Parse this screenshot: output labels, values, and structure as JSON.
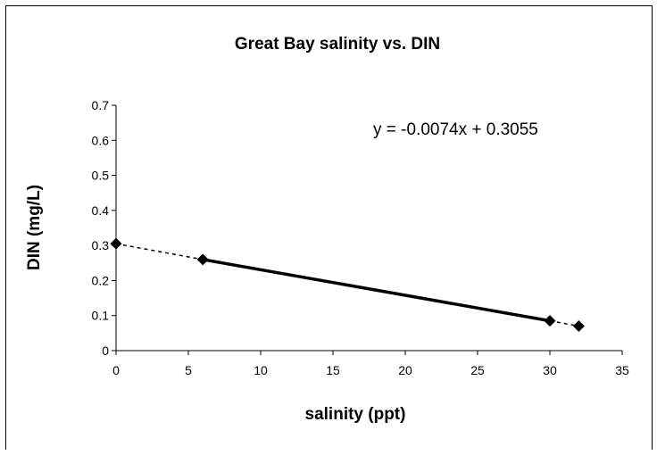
{
  "chart_data": {
    "type": "scatter",
    "title": "Great Bay salinity vs. DIN",
    "xlabel": "salinity (ppt)",
    "ylabel": "DIN (mg/L)",
    "xlim": [
      0,
      35
    ],
    "ylim": [
      0,
      0.7
    ],
    "x_ticks": [
      "0",
      "5",
      "10",
      "15",
      "20",
      "25",
      "30",
      "35"
    ],
    "y_ticks": [
      "0",
      "0.1",
      "0.2",
      "0.3",
      "0.4",
      "0.5",
      "0.6",
      "0.7"
    ],
    "points": [
      {
        "x": 0,
        "y": 0.305
      },
      {
        "x": 6,
        "y": 0.26
      },
      {
        "x": 30,
        "y": 0.085
      },
      {
        "x": 32,
        "y": 0.07
      }
    ],
    "solid_segment": [
      1,
      2
    ],
    "dashed_segments": [
      [
        0,
        1
      ],
      [
        2,
        3
      ]
    ],
    "trendline_equation": "y = -0.0074x + 0.3055",
    "grid": false,
    "legend": "none"
  }
}
